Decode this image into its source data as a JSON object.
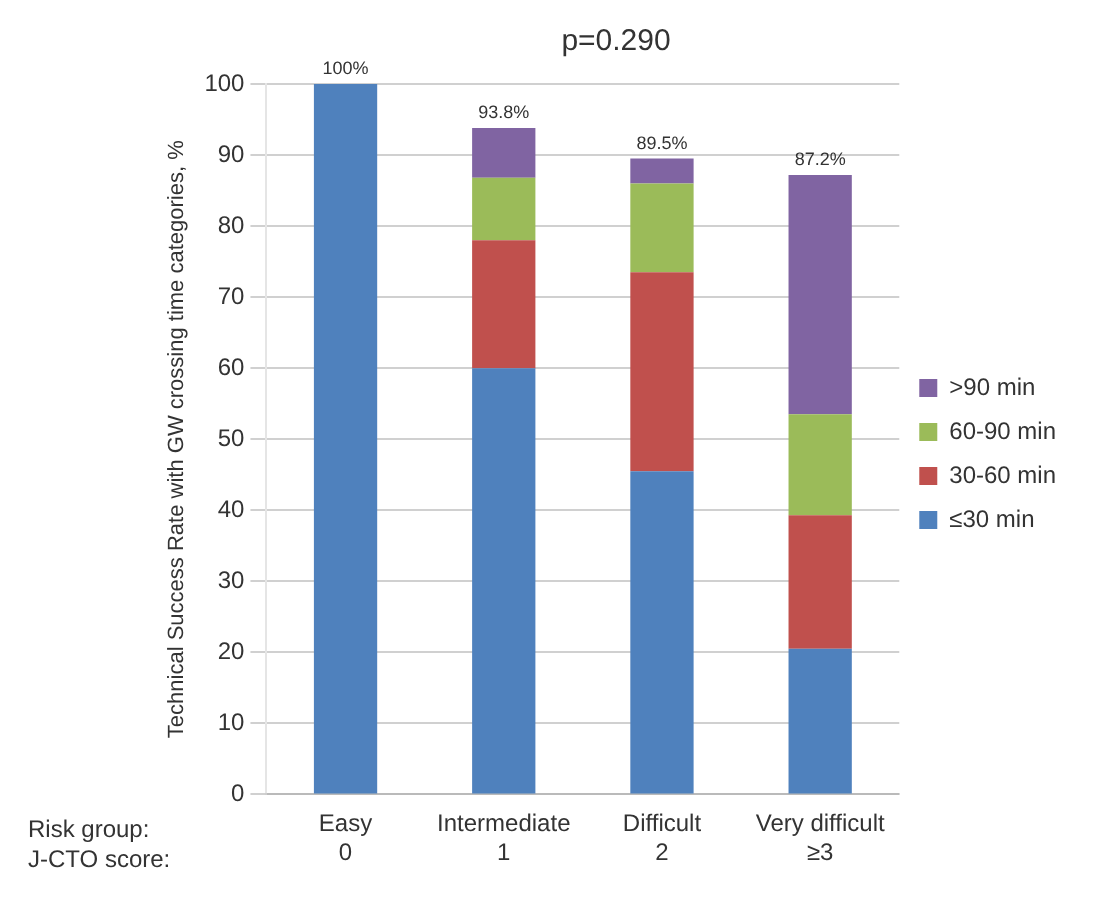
{
  "chart_data": {
    "type": "bar",
    "stacked": true,
    "title": "p=0.290",
    "ylabel": "Technical Success Rate with GW crossing time categories, %",
    "categories": [
      "Easy\n0",
      "Intermediate\n1",
      "Difficult\n2",
      "Very difficult\n≥3"
    ],
    "series": [
      {
        "name": "≤30 min",
        "color": "#4f81bd",
        "values": [
          100,
          60,
          45.5,
          20.5
        ]
      },
      {
        "name": "30-60 min",
        "color": "#c0504d",
        "values": [
          0,
          18,
          28,
          18.8
        ]
      },
      {
        "name": "60-90 min",
        "color": "#9bbb59",
        "values": [
          0,
          8.8,
          12.5,
          14.2
        ]
      },
      {
        "name": ">90 min",
        "color": "#8064a2",
        "values": [
          0,
          7,
          3.5,
          33.7
        ]
      }
    ],
    "totals": [
      "100%",
      "93.8%",
      "89.5%",
      "87.2%"
    ],
    "annotations": [
      "Risk group:",
      "J-CTO score:"
    ],
    "ylim": [
      0,
      100
    ],
    "yticks": [
      0,
      10,
      20,
      30,
      40,
      50,
      60,
      70,
      80,
      90,
      100
    ],
    "grid": "y",
    "legend": "right"
  }
}
